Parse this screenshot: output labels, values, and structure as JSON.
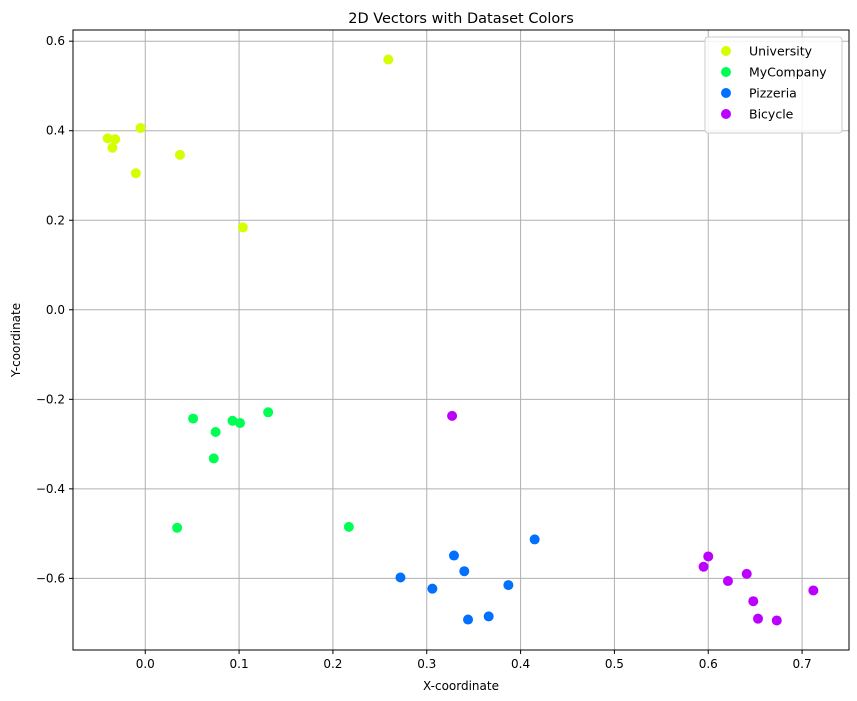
{
  "chart_data": {
    "type": "scatter",
    "title": "2D Vectors with Dataset Colors",
    "xlabel": "X-coordinate",
    "ylabel": "Y-coordinate",
    "xlim": [
      -0.077,
      0.75
    ],
    "ylim": [
      -0.76,
      0.625
    ],
    "xticks": [
      0.0,
      0.1,
      0.2,
      0.3,
      0.4,
      0.5,
      0.6,
      0.7
    ],
    "xtick_labels": [
      "0.0",
      "0.1",
      "0.2",
      "0.3",
      "0.4",
      "0.5",
      "0.6",
      "0.7"
    ],
    "yticks": [
      -0.6,
      -0.4,
      -0.2,
      0.0,
      0.2,
      0.4,
      0.6
    ],
    "ytick_labels": [
      "−0.6",
      "−0.4",
      "−0.2",
      "0.0",
      "0.2",
      "0.4",
      "0.6"
    ],
    "grid": true,
    "legend_position": "top-right",
    "series": [
      {
        "name": "University",
        "color": "#d4ff00",
        "points": [
          [
            -0.04,
            0.383
          ],
          [
            -0.035,
            0.362
          ],
          [
            -0.032,
            0.381
          ],
          [
            -0.005,
            0.406
          ],
          [
            -0.01,
            0.305
          ],
          [
            0.037,
            0.346
          ],
          [
            0.104,
            0.184
          ],
          [
            0.259,
            0.559
          ]
        ]
      },
      {
        "name": "MyCompany",
        "color": "#00ff55",
        "points": [
          [
            0.051,
            -0.243
          ],
          [
            0.075,
            -0.273
          ],
          [
            0.093,
            -0.248
          ],
          [
            0.101,
            -0.253
          ],
          [
            0.131,
            -0.229
          ],
          [
            0.073,
            -0.332
          ],
          [
            0.034,
            -0.487
          ],
          [
            0.217,
            -0.485
          ]
        ]
      },
      {
        "name": "Pizzeria",
        "color": "#0070ff",
        "points": [
          [
            0.272,
            -0.598
          ],
          [
            0.306,
            -0.623
          ],
          [
            0.329,
            -0.549
          ],
          [
            0.34,
            -0.584
          ],
          [
            0.344,
            -0.692
          ],
          [
            0.366,
            -0.685
          ],
          [
            0.387,
            -0.615
          ],
          [
            0.415,
            -0.513
          ]
        ]
      },
      {
        "name": "Bicycle",
        "color": "#bb00ff",
        "points": [
          [
            0.327,
            -0.237
          ],
          [
            0.595,
            -0.574
          ],
          [
            0.6,
            -0.551
          ],
          [
            0.621,
            -0.606
          ],
          [
            0.641,
            -0.59
          ],
          [
            0.648,
            -0.651
          ],
          [
            0.653,
            -0.69
          ],
          [
            0.673,
            -0.694
          ],
          [
            0.712,
            -0.627
          ]
        ]
      }
    ]
  }
}
